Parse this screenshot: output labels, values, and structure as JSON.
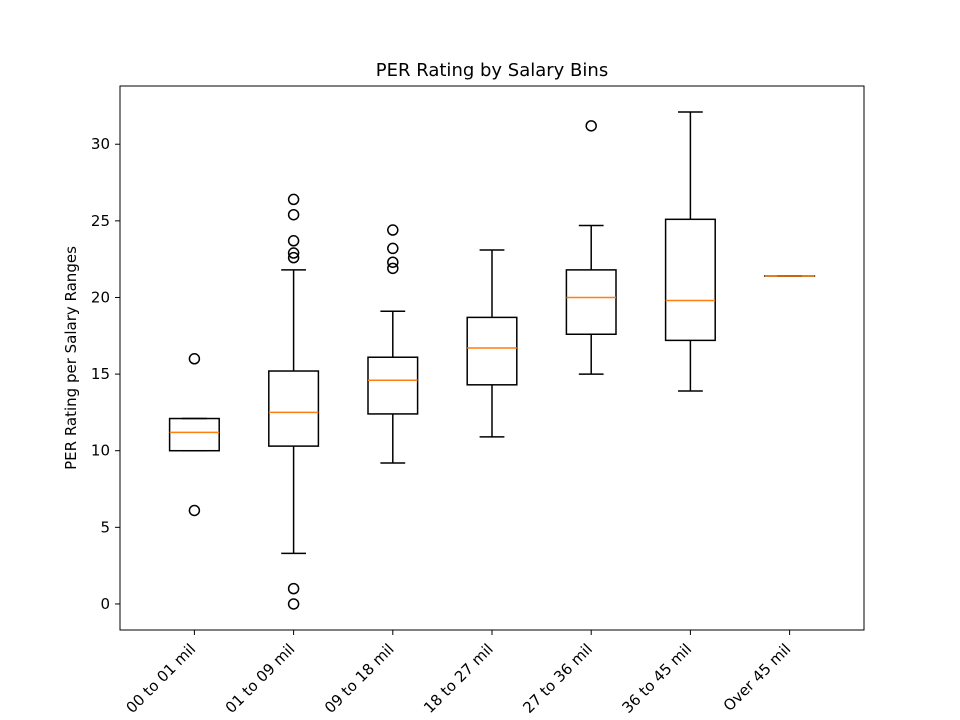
{
  "chart_data": {
    "type": "boxplot",
    "title": "PER Rating by Salary Bins",
    "xlabel": "",
    "ylabel": "PER Rating per Salary Ranges",
    "ylim": [
      -1.7,
      33.8
    ],
    "yticks": [
      0,
      5,
      10,
      15,
      20,
      25,
      30
    ],
    "grid": false,
    "categories": [
      "00 to 01 mil",
      "01 to 09 mil",
      "09 to 18 mil",
      "18 to 27 mil",
      "27 to 36 mil",
      "36 to 45 mil",
      "Over 45 mil"
    ],
    "boxes": [
      {
        "whisker_low": 10.0,
        "q1": 10.0,
        "median": 11.2,
        "q3": 12.1,
        "whisker_high": 12.1,
        "outliers": [
          16.0,
          6.1
        ]
      },
      {
        "whisker_low": 3.3,
        "q1": 10.3,
        "median": 12.5,
        "q3": 15.2,
        "whisker_high": 21.8,
        "outliers": [
          0.0,
          1.0,
          22.6,
          22.9,
          23.7,
          25.4,
          26.4
        ]
      },
      {
        "whisker_low": 9.2,
        "q1": 12.4,
        "median": 14.6,
        "q3": 16.1,
        "whisker_high": 19.1,
        "outliers": [
          21.9,
          22.3,
          23.2,
          24.4
        ]
      },
      {
        "whisker_low": 10.9,
        "q1": 14.3,
        "median": 16.7,
        "q3": 18.7,
        "whisker_high": 23.1,
        "outliers": []
      },
      {
        "whisker_low": 15.0,
        "q1": 17.6,
        "median": 20.0,
        "q3": 21.8,
        "whisker_high": 24.7,
        "outliers": [
          31.2
        ]
      },
      {
        "whisker_low": 13.9,
        "q1": 17.2,
        "median": 19.8,
        "q3": 25.1,
        "whisker_high": 32.1,
        "outliers": []
      },
      {
        "whisker_low": 21.4,
        "q1": 21.4,
        "median": 21.4,
        "q3": 21.4,
        "whisker_high": 21.4,
        "outliers": []
      }
    ],
    "colors": {
      "box": "#000000",
      "median": "#ff7f0e",
      "outlier_edge": "#000000"
    }
  }
}
